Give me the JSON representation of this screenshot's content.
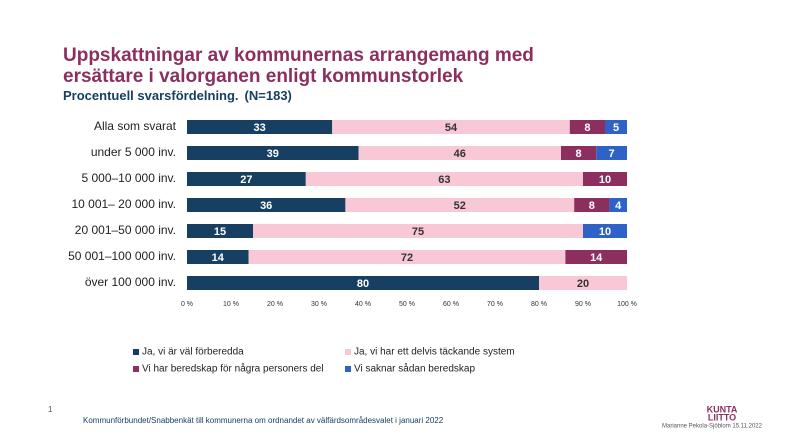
{
  "chart_data": {
    "type": "stacked-bar-horizontal",
    "title": [
      "Uppskattningar av kommunernas arrangemang med",
      "ersättare i valorganen enligt kommunstorlek"
    ],
    "subtitle": "Procentuell  svarsfördelning.",
    "subtitle_note": "(N=183)",
    "categories": [
      "Alla som svarat",
      "under 5 000 inv.",
      "5 000–10 000 inv.",
      "10 001– 20 000 inv.",
      "20 001–50 000 inv.",
      "50 001–100 000 inv.",
      "över 100 000 inv."
    ],
    "series": [
      {
        "name": "Ja, vi är väl förberedda",
        "color": "#173f62",
        "values": [
          33,
          39,
          27,
          36,
          15,
          14,
          80
        ]
      },
      {
        "name": "Ja, vi har ett delvis täckande system",
        "color": "#f8c8d6",
        "values": [
          54,
          46,
          63,
          52,
          75,
          72,
          20
        ]
      },
      {
        "name": "Vi har beredskap för några personers del",
        "color": "#8c2f5f",
        "values": [
          8,
          8,
          10,
          8,
          null,
          14,
          null
        ]
      },
      {
        "name": "Vi saknar sådan beredskap",
        "color": "#2f62c6",
        "values": [
          5,
          7,
          null,
          4,
          10,
          null,
          null
        ]
      }
    ],
    "xlim": [
      0,
      100
    ],
    "xticks": [
      {
        "value": 0,
        "label": "0 %"
      },
      {
        "value": 10,
        "label": "10 %"
      },
      {
        "value": 20,
        "label": "20 %"
      },
      {
        "value": 30,
        "label": "30 %"
      },
      {
        "value": 40,
        "label": "40 %"
      },
      {
        "value": 50,
        "label": "50 %"
      },
      {
        "value": 60,
        "label": "60 %"
      },
      {
        "value": 70,
        "label": "70 %"
      },
      {
        "value": 80,
        "label": "80 %"
      },
      {
        "value": 90,
        "label": "90 %"
      },
      {
        "value": 100,
        "label": "100 %"
      }
    ],
    "legend": "bottom"
  },
  "footer": {
    "page_number": "1",
    "source": "Kommunförbundet/Snabbenkät till kommunerna om ordnandet av välfärdsområdesvalet i januari 2022",
    "author": "Marianne Pekola-Sjöblom  15.11.2022",
    "logo": [
      "KUNTA",
      "LIITTO"
    ]
  }
}
